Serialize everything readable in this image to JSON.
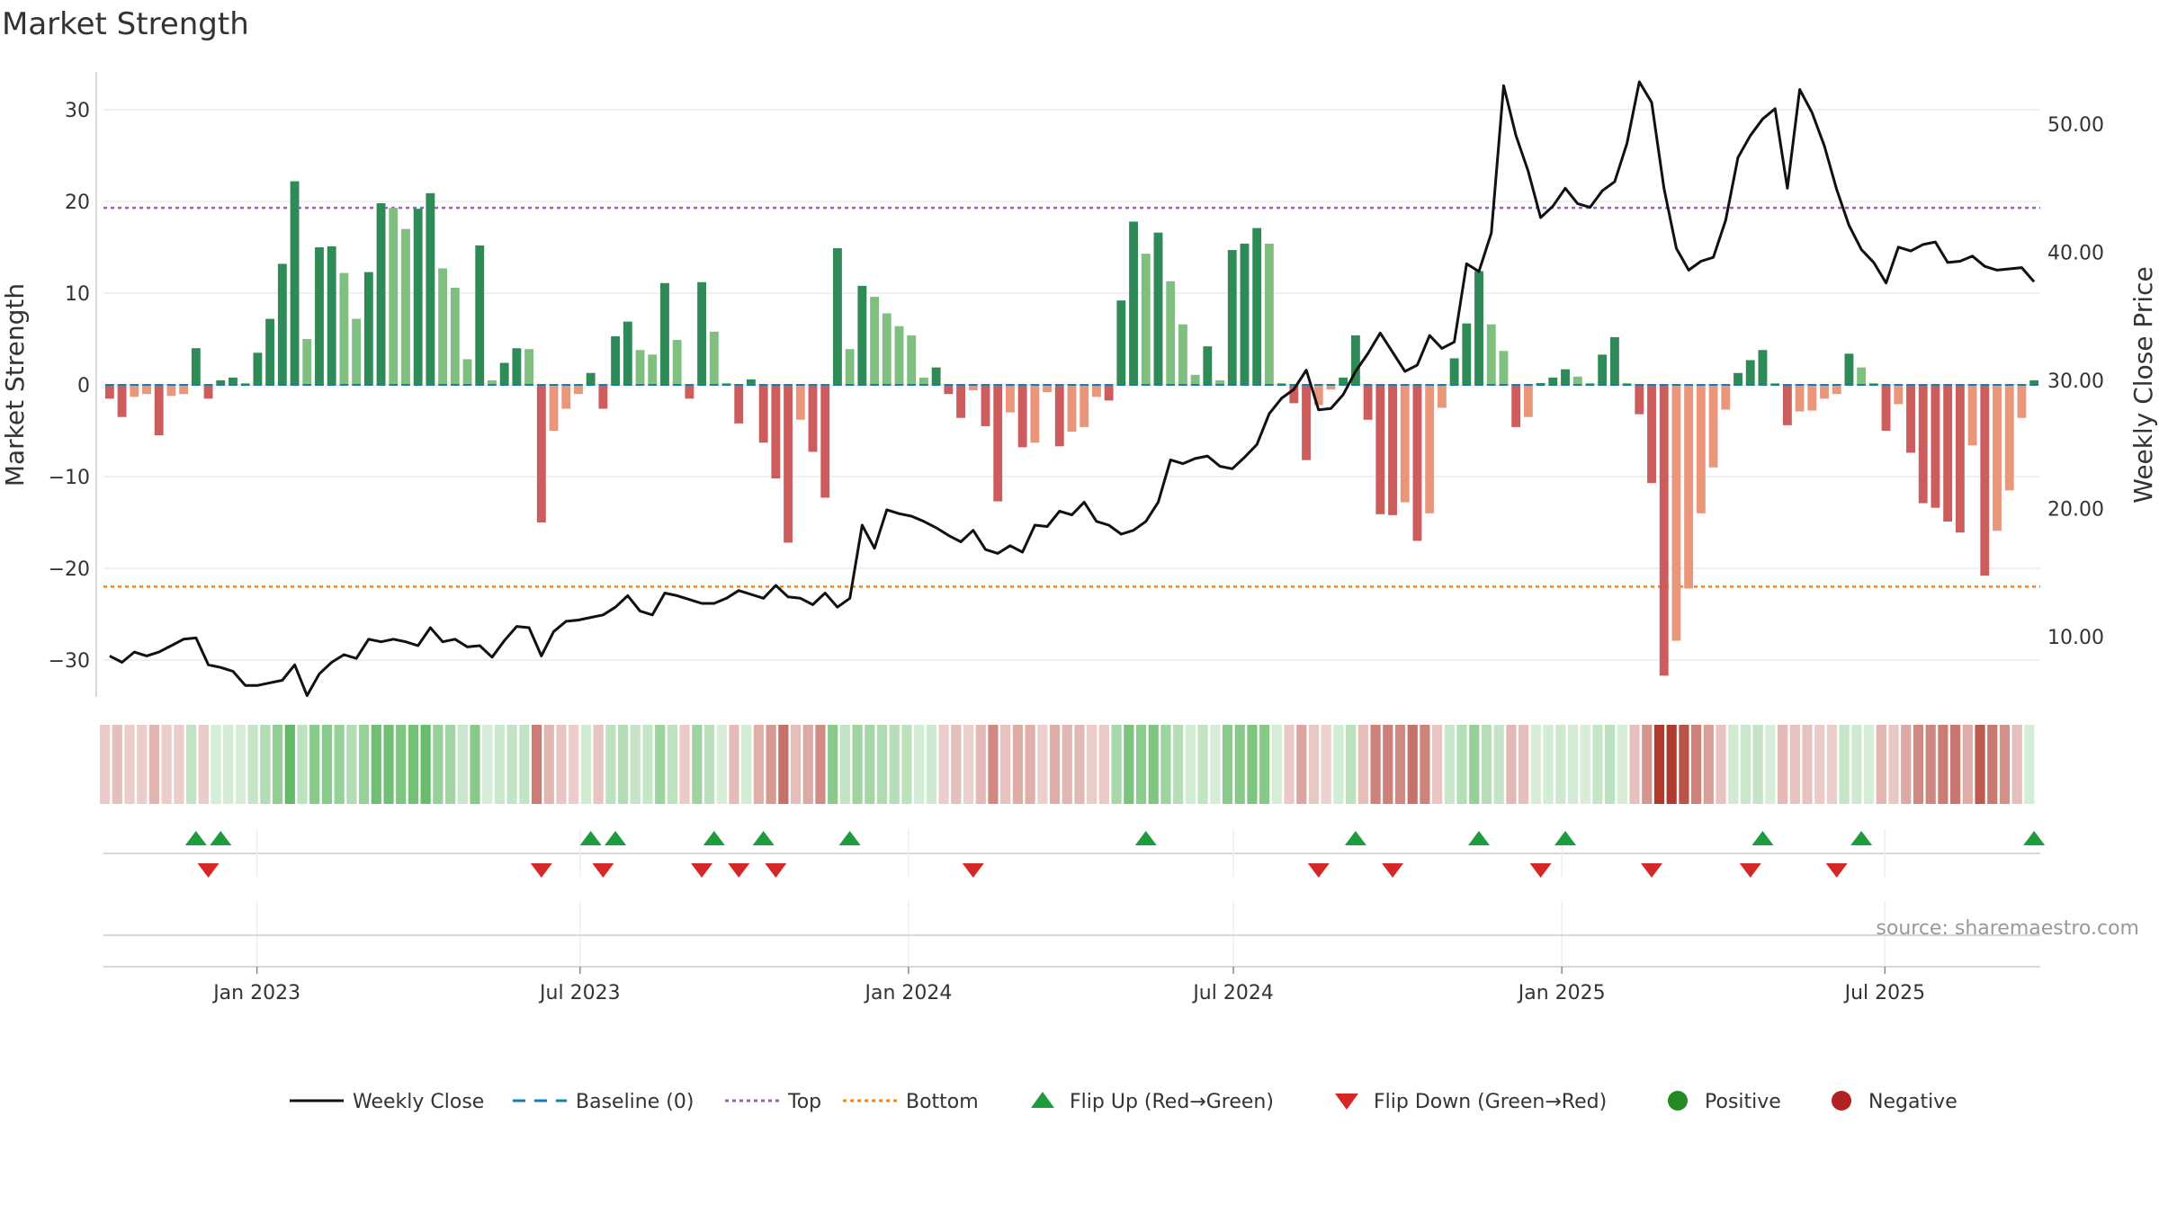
{
  "chart_data": {
    "type": "bar",
    "title": "Market Strength",
    "ylabel_left": "Market Strength",
    "ylabel_right": "Weekly Close Price",
    "source": "source: sharemaestro.com",
    "ylim_left": [
      -34,
      34
    ],
    "yticks_left": [
      30,
      20,
      10,
      0,
      -10,
      -20,
      -30
    ],
    "yticks_left_labels": [
      "30",
      "20",
      "10",
      "0",
      "−10",
      "−20",
      "−30"
    ],
    "ylim_right": [
      5,
      53
    ],
    "yticks_right": [
      50,
      40,
      30,
      20,
      10
    ],
    "yticks_right_labels": [
      "50.00",
      "40.00",
      "30.00",
      "20.00",
      "10.00"
    ],
    "x_start": "2022-10-07",
    "x_end": "2025-09-26",
    "xticks": [
      "2023-01-01",
      "2023-07-01",
      "2024-01-01",
      "2024-07-01",
      "2025-01-01",
      "2025-07-01"
    ],
    "xtick_labels": [
      "Jan 2023",
      "Jul 2023",
      "Jan 2024",
      "Jul 2024",
      "Jan 2025",
      "Jul 2025"
    ],
    "thresholds": {
      "top": 19.3,
      "bottom": -22.0
    },
    "strength_values": [
      -1.5,
      -3.5,
      -1.3,
      -1,
      -5.5,
      -1.2,
      -1,
      4,
      -1.5,
      0.5,
      0.8,
      0.2,
      3.5,
      7.2,
      13.2,
      22.2,
      5,
      15,
      15.1,
      12.2,
      7.2,
      12.3,
      19.8,
      19.3,
      17,
      19.2,
      20.9,
      12.7,
      10.6,
      2.8,
      15.2,
      0.5,
      2.4,
      4,
      3.9,
      -15,
      -5,
      -2.6,
      -1,
      1.3,
      -2.6,
      5.3,
      6.9,
      3.8,
      3.3,
      11.1,
      4.9,
      -1.5,
      11.2,
      5.8,
      0.2,
      -4.2,
      0.6,
      -6.3,
      -10.2,
      -17.2,
      -3.8,
      -7.3,
      -12.3,
      14.9,
      3.9,
      10.8,
      9.6,
      7.8,
      6.4,
      5.4,
      0.8,
      1.9,
      -1,
      -3.6,
      -0.6,
      -4.5,
      -12.7,
      -3,
      -6.8,
      -6.3,
      -0.8,
      -6.7,
      -5.1,
      -4.6,
      -1.3,
      -1.7,
      9.2,
      17.8,
      14.3,
      16.6,
      11.3,
      6.6,
      1.1,
      4.2,
      0.5,
      14.7,
      15.4,
      17.1,
      15.4,
      0.2,
      -2,
      -8.2,
      -2.2,
      -0.5,
      0.8,
      5.4,
      -3.8,
      -14.1,
      -14.2,
      -12.8,
      -17,
      -14,
      -2.5,
      2.9,
      6.7,
      12.4,
      6.6,
      3.7,
      -4.6,
      -3.5,
      0.2,
      0.8,
      1.7,
      0.9,
      0.2,
      3.3,
      5.2,
      0.2,
      -3.2,
      -10.7,
      -31.7,
      -27.9,
      -22.2,
      -14,
      -9,
      -2.7,
      1.3,
      2.7,
      3.8,
      0.2,
      -4.4,
      -2.9,
      -2.8,
      -1.5,
      -1,
      3.4,
      1.9,
      0.2,
      -5,
      -2.1,
      -7.4,
      -12.9,
      -13.4,
      -14.9,
      -16.1,
      -6.6,
      -20.8,
      -15.9,
      -11.5,
      -3.6,
      0.5
    ],
    "price_values": [
      8.5,
      8,
      8.8,
      8.5,
      8.8,
      9.3,
      9.8,
      9.9,
      7.8,
      7.6,
      7.3,
      6.2,
      6.2,
      6.4,
      6.6,
      7.8,
      5.4,
      7.1,
      8,
      8.6,
      8.3,
      9.8,
      9.6,
      9.8,
      9.6,
      9.3,
      10.7,
      9.6,
      9.8,
      9.2,
      9.3,
      8.4,
      9.7,
      10.8,
      10.7,
      8.5,
      10.4,
      11.2,
      11.3,
      11.5,
      11.7,
      12.3,
      13.2,
      12,
      11.7,
      13.4,
      13.2,
      12.9,
      12.6,
      12.6,
      13,
      13.6,
      13.3,
      13,
      14,
      13.1,
      13,
      12.5,
      13.4,
      12.3,
      13,
      18.7,
      16.9,
      19.9,
      19.6,
      19.4,
      19,
      18.5,
      17.9,
      17.4,
      18.3,
      16.8,
      16.5,
      17.1,
      16.6,
      18.7,
      18.6,
      19.8,
      19.5,
      20.5,
      19,
      18.7,
      18,
      18.3,
      19,
      20.5,
      23.8,
      23.5,
      23.9,
      24.1,
      23.3,
      23.1,
      24,
      25,
      27.4,
      28.6,
      29.3,
      30.8,
      27.7,
      27.8,
      28.9,
      30.7,
      32.1,
      33.7,
      32.2,
      30.7,
      31.2,
      33.5,
      32.5,
      33,
      39.1,
      38.5,
      41.5,
      53,
      49.1,
      46.3,
      42.7,
      43.6,
      45,
      43.8,
      43.5,
      44.8,
      45.5,
      48.5,
      53.3,
      51.7,
      45,
      40.3,
      38.6,
      39.3,
      39.6,
      42.5,
      47.4,
      49.1,
      50.4,
      51.2,
      45,
      52.7,
      50.9,
      48.3,
      44.9,
      42.1,
      40.2,
      39.2,
      37.6,
      40.4,
      40.1,
      40.6,
      40.8,
      39.2,
      39.3,
      39.7,
      38.9,
      38.6,
      38.7,
      38.8,
      37.7
    ],
    "flip_up_indices": [
      7,
      9,
      39,
      41,
      49,
      53,
      60,
      84,
      101,
      111,
      118,
      134,
      142,
      156
    ],
    "flip_down_indices": [
      8,
      35,
      40,
      48,
      51,
      54,
      70,
      98,
      104,
      116,
      125,
      133,
      140
    ],
    "colors": {
      "strong_green": "#2e8b57",
      "light_green": "#7fbf7f",
      "strong_red": "#cd5c5c",
      "light_red": "#e9967a",
      "price_line": "#111111",
      "baseline": "#1f77b4",
      "top_line": "#9467bd",
      "bottom_line": "#ff7f0e",
      "flip_up": "#1e9b3c",
      "flip_down": "#d62728",
      "positive": "#228b22",
      "negative": "#b22222"
    },
    "legend": [
      {
        "label": "Weekly Close",
        "kind": "line-solid"
      },
      {
        "label": "Baseline (0)",
        "kind": "line-dash"
      },
      {
        "label": "Top",
        "kind": "line-dot-purple"
      },
      {
        "label": "Bottom",
        "kind": "line-dot-orange"
      },
      {
        "label": "Flip Up (Red→Green)",
        "kind": "tri-up"
      },
      {
        "label": "Flip Down (Green→Red)",
        "kind": "tri-down"
      },
      {
        "label": "Positive",
        "kind": "dot-green"
      },
      {
        "label": "Negative",
        "kind": "dot-red"
      }
    ]
  }
}
